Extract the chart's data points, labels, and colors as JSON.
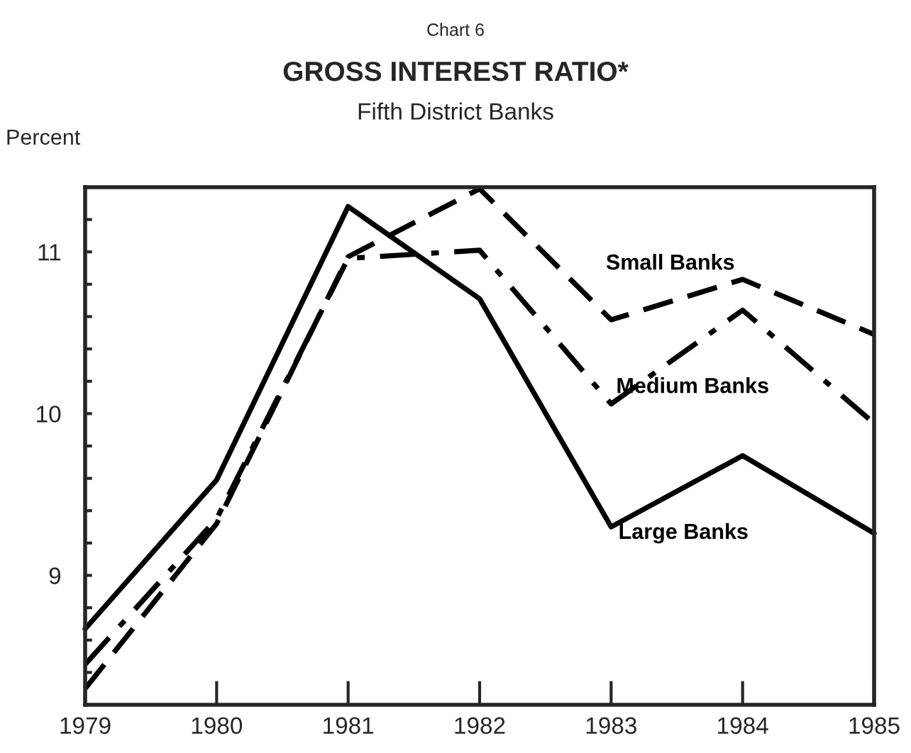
{
  "chart_data": {
    "type": "line",
    "annotations": [
      "Chart 6"
    ],
    "title": "GROSS INTEREST RATIO*",
    "subtitle": "Fifth District Banks",
    "ylabel": "Percent",
    "x": [
      1979,
      1980,
      1981,
      1982,
      1983,
      1984,
      1985
    ],
    "series": [
      {
        "name": "Small Banks",
        "color": "#000000",
        "line_style": "dashed",
        "values": [
          8.3,
          9.32,
          10.97,
          11.39,
          10.58,
          10.83,
          10.49
        ]
      },
      {
        "name": "Medium Banks",
        "color": "#000000",
        "line_style": "dashdot",
        "values": [
          8.45,
          9.35,
          10.96,
          11.01,
          10.06,
          10.64,
          9.94
        ]
      },
      {
        "name": "Large Banks",
        "color": "#000000",
        "line_style": "solid",
        "values": [
          8.67,
          9.59,
          11.28,
          10.71,
          9.3,
          9.74,
          9.26
        ]
      }
    ],
    "xlim": [
      1979,
      1985
    ],
    "xticks": [
      1979,
      1980,
      1981,
      1982,
      1983,
      1984,
      1985
    ],
    "ylim": [
      8.2,
      11.4
    ],
    "yticks": [
      {
        "value": 8.4,
        "label": null
      },
      {
        "value": 8.6,
        "label": null
      },
      {
        "value": 8.8,
        "label": null
      },
      9,
      {
        "value": 9.2,
        "label": null
      },
      {
        "value": 9.4,
        "label": null
      },
      {
        "value": 9.6,
        "label": null
      },
      {
        "value": 9.8,
        "label": null
      },
      10,
      {
        "value": 10.2,
        "label": null
      },
      {
        "value": 10.4,
        "label": null
      },
      {
        "value": 10.6,
        "label": null
      },
      {
        "value": 10.8,
        "label": null
      },
      11,
      {
        "value": 11.2,
        "label": null
      }
    ],
    "grid": false,
    "legend": false,
    "marker": "none"
  }
}
